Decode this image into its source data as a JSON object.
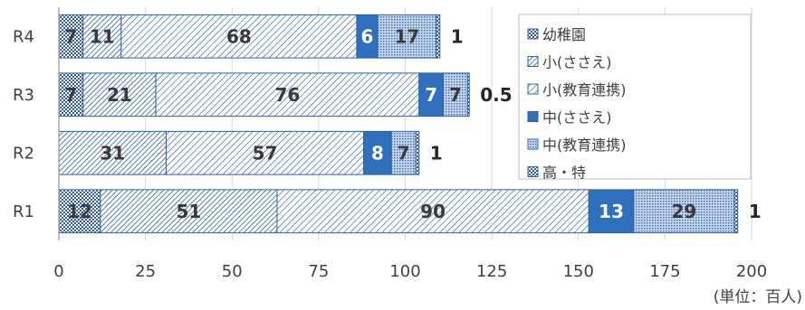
{
  "chart_data": {
    "type": "bar",
    "orientation": "horizontal",
    "stacked": true,
    "categories": [
      "R1",
      "R2",
      "R3",
      "R4"
    ],
    "series": [
      {
        "name": "幼稚園",
        "values": [
          12,
          0,
          7,
          7
        ],
        "color": "#5b7fb0",
        "pattern": "dense-dots"
      },
      {
        "name": "小(ささえ)",
        "values": [
          51,
          31,
          21,
          11
        ],
        "color": "#3a6fb5",
        "pattern": "diag-fine"
      },
      {
        "name": "小(教育連携)",
        "values": [
          90,
          57,
          76,
          68
        ],
        "color": "#3a6fb5",
        "pattern": "diag-wide"
      },
      {
        "name": "中(ささえ)",
        "values": [
          13,
          8,
          7,
          6
        ],
        "color": "#2e6fbe",
        "pattern": "solid"
      },
      {
        "name": "中(教育連携)",
        "values": [
          29,
          7,
          7,
          17
        ],
        "color": "#6f94c4",
        "pattern": "dots"
      },
      {
        "name": "高・特",
        "values": [
          1,
          1,
          0.5,
          1
        ],
        "color": "#2e5fa8",
        "pattern": "check"
      }
    ],
    "data_labels": [
      [
        "12",
        "51",
        "90",
        "13",
        "29",
        "1"
      ],
      [
        "",
        "31",
        "57",
        "8",
        "7",
        "1"
      ],
      [
        "7",
        "21",
        "76",
        "7",
        "7",
        "0.5"
      ],
      [
        "7",
        "11",
        "68",
        "6",
        "17",
        "1"
      ]
    ],
    "xlim": [
      0,
      200
    ],
    "xticks": [
      "0",
      "25",
      "50",
      "75",
      "100",
      "125",
      "150",
      "175",
      "200"
    ],
    "grid": true,
    "legend": "top-right",
    "unit_note": "(単位：百人)",
    "xlabel": "",
    "ylabel": ""
  }
}
